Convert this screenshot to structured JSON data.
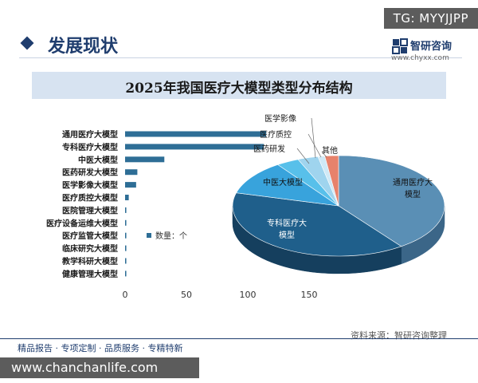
{
  "overlay": {
    "telegram_tag": "TG: MYYJJPP",
    "site_watermark": "www.chanchanlife.com"
  },
  "header": {
    "section_title": "发展现状",
    "brand_name": "智研咨询",
    "brand_url": "www.chyxx.com"
  },
  "footer": {
    "tagline": "精品报告 · 专项定制 · 品质服务 · 专精特新",
    "source": "资料来源：智研咨询整理"
  },
  "colors": {
    "bar": "#2e6e96",
    "navy": "#1f3d6e",
    "pie_tongyong": "#5a8fb5",
    "pie_zhuanke": "#1f5f8b",
    "pie_zhongyi": "#38a3dc",
    "pie_qita": "#e7826b"
  },
  "chart_data": [
    {
      "type": "bar",
      "orientation": "horizontal",
      "title": "2025年我国医疗大模型类型分布结构",
      "categories": [
        "通用医疗大模型",
        "专科医疗大模型",
        "中医大模型",
        "医药研发大模型",
        "医学影像大模型",
        "医疗质控大模型",
        "医院管理大模型",
        "医疗设备运维大模型",
        "医疗监管大模型",
        "临床研究大模型",
        "教学科研大模型",
        "健康管理大模型"
      ],
      "series": [
        {
          "name": "数量：个",
          "values": [
            115,
            113,
            32,
            10,
            9,
            3,
            1,
            1,
            1,
            1,
            1,
            1
          ]
        }
      ],
      "xlim": [
        0,
        150
      ],
      "xticks": [
        0,
        50,
        100,
        150
      ],
      "legend": "数量：个",
      "legend_position": "center-right"
    },
    {
      "type": "pie",
      "style": "3d",
      "slices": [
        {
          "label": "通用医疗大模型",
          "value": 115
        },
        {
          "label": "专科医疗大模型",
          "value": 113
        },
        {
          "label": "中医大模型",
          "value": 32
        },
        {
          "label": "医药研发",
          "value": 10
        },
        {
          "label": "医学影像",
          "value": 9
        },
        {
          "label": "医疗质控",
          "value": 3
        },
        {
          "label": "其他",
          "value": 6
        }
      ]
    }
  ]
}
